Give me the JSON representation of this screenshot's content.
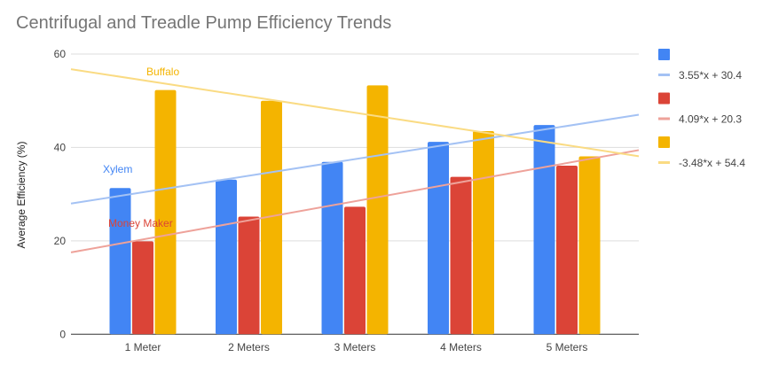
{
  "chart_data": {
    "type": "bar",
    "title": "Centrifugal and Treadle Pump Efficiency Trends",
    "xlabel": "",
    "ylabel": "Average Efficiency (%)",
    "ylim": [
      0,
      60
    ],
    "yticks": [
      0,
      20,
      40,
      60
    ],
    "grid": true,
    "legend_position": "right",
    "categories": [
      "1 Meter",
      "2 Meters",
      "3 Meters",
      "4 Meters",
      "5 Meters"
    ],
    "series": [
      {
        "name": "Xylem",
        "color": "#4285F4",
        "trend_color": "#A4C2F4",
        "values": [
          31.3,
          33.1,
          36.9,
          41.2,
          44.8
        ],
        "trendline": {
          "slope": 3.55,
          "intercept": 30.4,
          "label": "3.55*x + 30.4"
        }
      },
      {
        "name": "Money Maker",
        "color": "#DB4437",
        "trend_color": "#EEA29A",
        "values": [
          19.9,
          25.2,
          27.3,
          33.7,
          36.1
        ],
        "trendline": {
          "slope": 4.09,
          "intercept": 20.3,
          "label": "4.09*x + 20.3"
        }
      },
      {
        "name": "Buffalo",
        "color": "#F4B400",
        "trend_color": "#FADB83",
        "values": [
          52.3,
          50.0,
          53.3,
          43.5,
          38.1
        ],
        "trendline": {
          "slope": -3.48,
          "intercept": 54.4,
          "label": "-3.48*x + 54.4"
        }
      }
    ]
  }
}
